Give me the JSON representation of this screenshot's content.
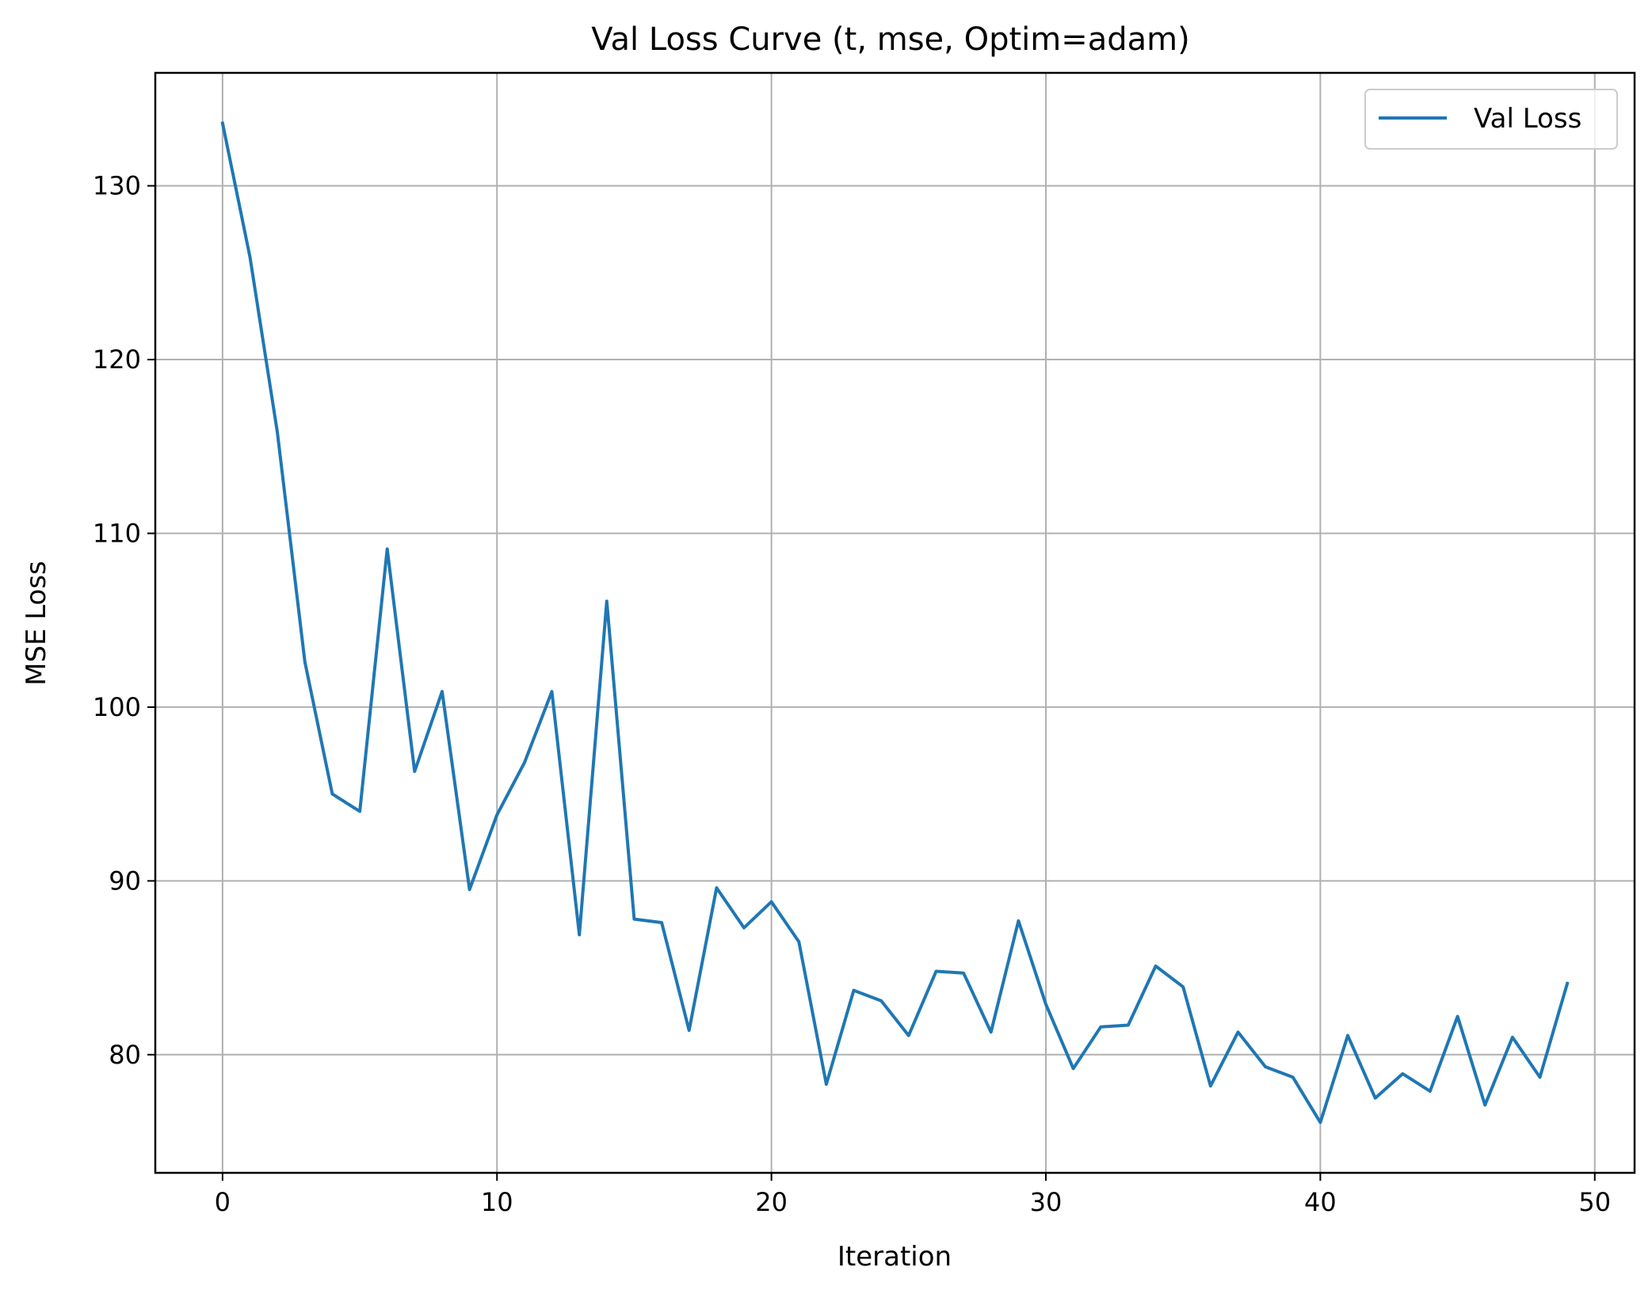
{
  "chart_data": {
    "type": "line",
    "title": "Val Loss Curve (t, mse, Optim=adam)",
    "xlabel": "Iteration",
    "ylabel": "MSE Loss",
    "xlim": [
      -2.45,
      51.45
    ],
    "ylim": [
      73.2,
      136.5
    ],
    "xticks": [
      0,
      10,
      20,
      30,
      40,
      50
    ],
    "yticks": [
      80,
      90,
      100,
      110,
      120,
      130
    ],
    "grid": true,
    "legend_position": "upper right",
    "series": [
      {
        "name": "Val Loss",
        "color": "#1f77b4",
        "x": [
          0,
          1,
          2,
          3,
          4,
          5,
          6,
          7,
          8,
          9,
          10,
          11,
          12,
          13,
          14,
          15,
          16,
          17,
          18,
          19,
          20,
          21,
          22,
          23,
          24,
          25,
          26,
          27,
          28,
          29,
          30,
          31,
          32,
          33,
          34,
          35,
          36,
          37,
          38,
          39,
          40,
          41,
          42,
          43,
          44,
          45,
          46,
          47,
          48,
          49
        ],
        "values": [
          133.6,
          125.9,
          115.8,
          102.6,
          95.0,
          94.0,
          109.1,
          96.3,
          100.9,
          89.5,
          93.8,
          96.8,
          100.9,
          86.9,
          106.1,
          87.8,
          87.6,
          81.4,
          89.6,
          87.3,
          88.8,
          86.5,
          78.3,
          83.7,
          83.1,
          81.1,
          84.8,
          84.7,
          81.3,
          87.7,
          82.9,
          79.2,
          81.6,
          81.7,
          85.1,
          83.9,
          78.2,
          81.3,
          79.3,
          78.7,
          76.1,
          81.1,
          77.5,
          78.9,
          77.9,
          82.2,
          77.1,
          81.0,
          78.7,
          84.1
        ]
      }
    ]
  }
}
